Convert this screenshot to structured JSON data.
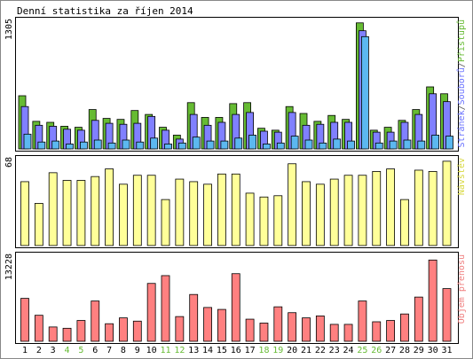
{
  "chart_data": {
    "type": "bar",
    "title": "Denní statistika za říjen 2014",
    "days": [
      "1",
      "2",
      "3",
      "4",
      "5",
      "6",
      "7",
      "8",
      "9",
      "10",
      "11",
      "12",
      "13",
      "14",
      "15",
      "16",
      "17",
      "18",
      "19",
      "20",
      "21",
      "22",
      "23",
      "24",
      "25",
      "26",
      "27",
      "28",
      "29",
      "30",
      "31"
    ],
    "weekend_days": [
      "4",
      "5",
      "11",
      "12",
      "18",
      "19",
      "25",
      "26"
    ],
    "panels": [
      {
        "id": "hits",
        "ymax_label": "1305",
        "ymax": 1305,
        "side_label_parts": [
          {
            "text": "Stránek",
            "color": "#6b73ff"
          },
          {
            "text": "/",
            "color": "#555555"
          },
          {
            "text": "Souborů",
            "color": "#6b73ff"
          },
          {
            "text": "/",
            "color": "#555555"
          },
          {
            "text": "Přístupů",
            "color": "#66bb33"
          }
        ],
        "series": [
          {
            "name": "Přístupů",
            "color": "#66bb33",
            "values": [
              540,
              280,
              270,
              230,
              220,
              400,
              310,
              300,
              390,
              350,
              220,
              140,
              470,
              320,
              320,
              460,
              470,
              210,
              190,
              430,
              360,
              280,
              340,
              300,
              1280,
              190,
              220,
              290,
              400,
              630,
              560
            ]
          },
          {
            "name": "Souborů",
            "color": "#8080ff",
            "values": [
              430,
              240,
              230,
              200,
              190,
              290,
              260,
              250,
              260,
              330,
              190,
              100,
              350,
              240,
              270,
              350,
              370,
              180,
              170,
              370,
              240,
              250,
              270,
              270,
              1200,
              170,
              170,
              270,
              350,
              560,
              480
            ]
          },
          {
            "name": "Stránek",
            "color": "#5cb8f0",
            "values": [
              150,
              70,
              80,
              50,
              70,
              90,
              60,
              90,
              70,
              110,
              50,
              60,
              120,
              80,
              80,
              110,
              140,
              50,
              60,
              130,
              90,
              60,
              100,
              80,
              1140,
              60,
              80,
              90,
              80,
              140,
              130
            ]
          }
        ]
      },
      {
        "id": "visits",
        "ymax_label": "68",
        "ymax": 68,
        "side_label_parts": [
          {
            "text": "Návštěv",
            "color": "#d8d840"
          }
        ],
        "series": [
          {
            "name": "Návštěv",
            "color": "#ffff99",
            "values": [
              50,
              33,
              57,
              51,
              51,
              54,
              60,
              48,
              55,
              55,
              36,
              52,
              50,
              48,
              56,
              56,
              41,
              38,
              39,
              64,
              50,
              48,
              52,
              55,
              55,
              58,
              60,
              36,
              59,
              58,
              66
            ]
          }
        ]
      },
      {
        "id": "traffic",
        "ymax_label": "13228",
        "ymax": 13228,
        "side_label_parts": [
          {
            "text": "Objem přenosu",
            "color": "#f08080"
          }
        ],
        "series": [
          {
            "name": "Objem přenosu",
            "color": "#ff8080",
            "values": [
              6600,
              4000,
              2200,
              2000,
              3200,
              6200,
              2700,
              3600,
              3100,
              8900,
              10100,
              3800,
              7200,
              5200,
              4900,
              10400,
              3400,
              2800,
              5300,
              4400,
              3600,
              3900,
              2600,
              2600,
              6200,
              3000,
              3200,
              4200,
              6800,
              12500,
              8100
            ]
          }
        ]
      }
    ]
  }
}
